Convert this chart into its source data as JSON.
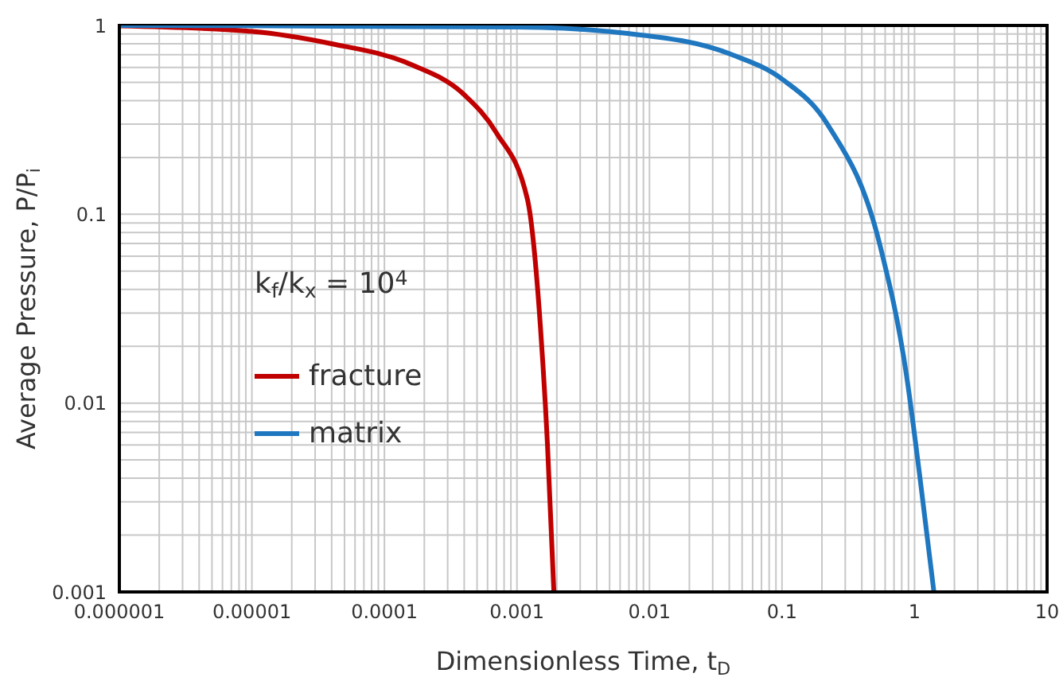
{
  "chart_data": {
    "type": "line",
    "xlabel": "Dimensionless Time, t$_{D}$",
    "ylabel": "Average Pressure, P/P$_{i}$",
    "log": "xy",
    "grid": true,
    "legend": "left",
    "marker": "none",
    "line_style": "solid",
    "xlim": [
      1e-06,
      10
    ],
    "xticks": [
      {
        "value": 1e-06,
        "label": "0.000001"
      },
      {
        "value": 1e-05,
        "label": "0.00001"
      },
      0.0001,
      0.001,
      0.01,
      0.1,
      1,
      10
    ],
    "ylim": [
      0.001,
      1
    ],
    "yticks": [
      0.001,
      0.01,
      0.1,
      1
    ],
    "annotations": [
      "k$_{f}$/k$_{x}$ = 10$^{4}$"
    ],
    "series": [
      {
        "name": "fracture",
        "color": "#c00000",
        "x": [
          1e-06,
          1e-05,
          4e-05,
          0.00016,
          0.0004,
          0.0007,
          0.0012,
          0.0015,
          0.0017,
          0.0019
        ],
        "values": [
          0.995,
          0.93,
          0.8,
          0.62,
          0.43,
          0.27,
          0.12,
          0.026,
          0.006,
          0.001
        ]
      },
      {
        "name": "matrix",
        "color": "#1f77c0",
        "x": [
          1e-06,
          0.001,
          0.0066,
          0.042,
          0.1,
          0.22,
          0.55,
          0.87,
          1.1,
          1.4
        ],
        "values": [
          1,
          0.98,
          0.91,
          0.7,
          0.52,
          0.3,
          0.068,
          0.014,
          0.004,
          0.001
        ]
      }
    ]
  }
}
